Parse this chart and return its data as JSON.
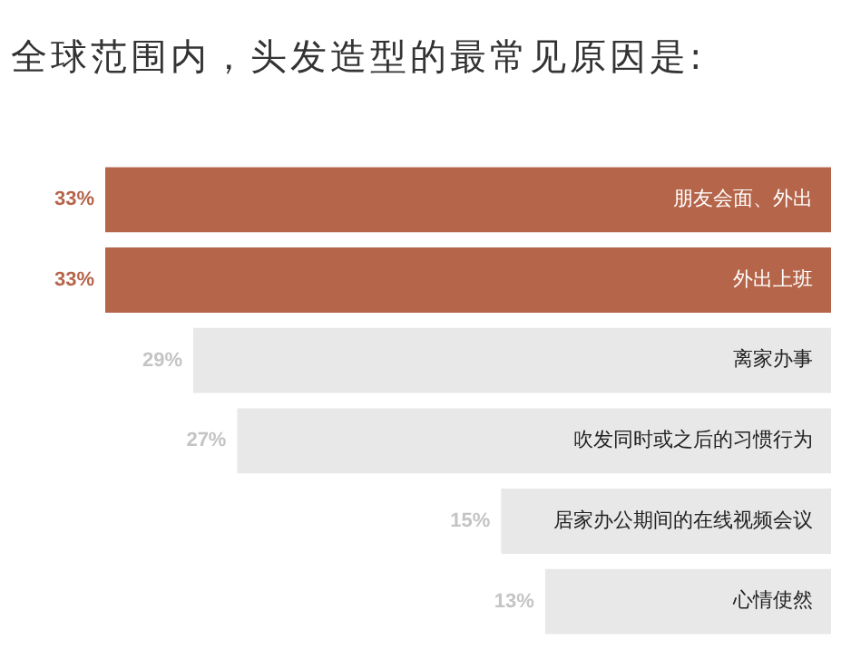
{
  "chart_data": {
    "type": "bar",
    "orientation": "horizontal",
    "title": "全球范围内，头发造型的最常见原因是:",
    "categories": [
      "朋友会面、外出",
      "外出上班",
      "离家办事",
      "吹发同时或之后的习惯行为",
      "居家办公期间的在线视频会议",
      "心情使然"
    ],
    "values": [
      33,
      33,
      29,
      27,
      15,
      13
    ],
    "colors": [
      "#b5654a",
      "#b5654a",
      "#e8e8e8",
      "#e8e8e8",
      "#e8e8e8",
      "#e8e8e8"
    ],
    "value_labels": [
      "33%",
      "33%",
      "29%",
      "27%",
      "15%",
      "13%"
    ],
    "legend": false
  }
}
